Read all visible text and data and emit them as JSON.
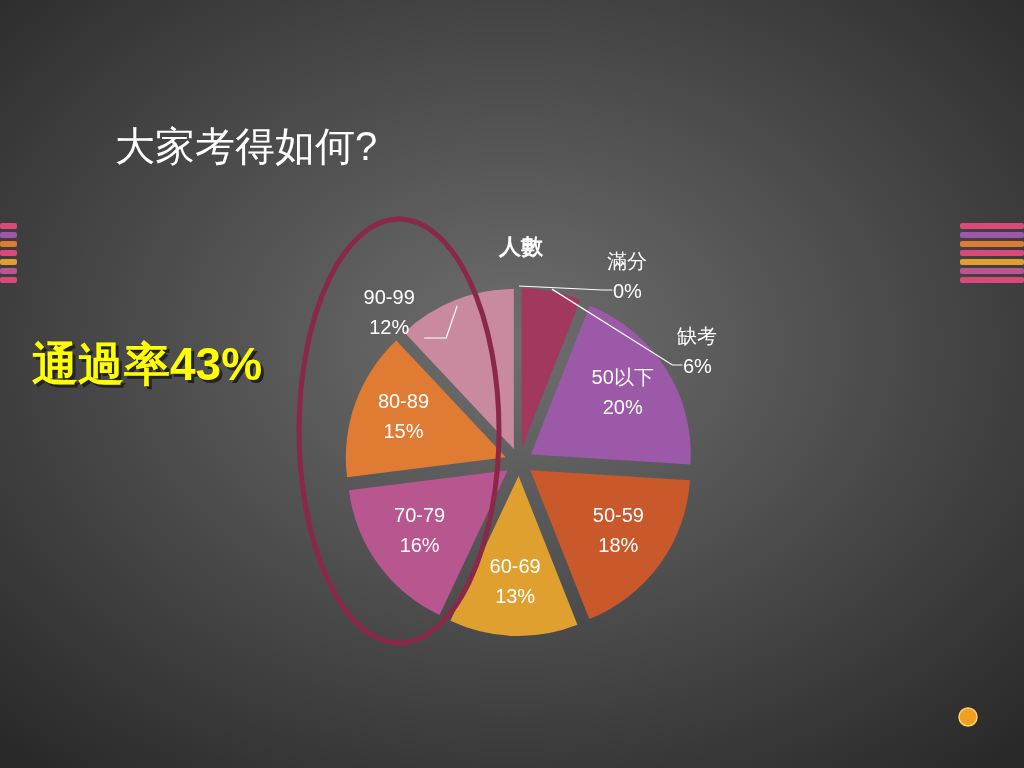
{
  "chart_data": {
    "type": "pie",
    "title": "人數",
    "annotations": [
      "大家考得如何?",
      "通過率43%"
    ],
    "categories": [
      "滿分",
      "缺考",
      "50以下",
      "50-59",
      "60-69",
      "70-79",
      "80-89",
      "90-99"
    ],
    "values": [
      0,
      6,
      20,
      18,
      13,
      16,
      15,
      12
    ],
    "value_labels": [
      "0%",
      "6%",
      "20%",
      "18%",
      "13%",
      "16%",
      "15%",
      "12%"
    ],
    "colors": [
      "#7e2f55",
      "#a3385f",
      "#9b59a8",
      "#c9582a",
      "#e0a030",
      "#b85690",
      "#e07b33",
      "#c98aa0"
    ]
  }
}
